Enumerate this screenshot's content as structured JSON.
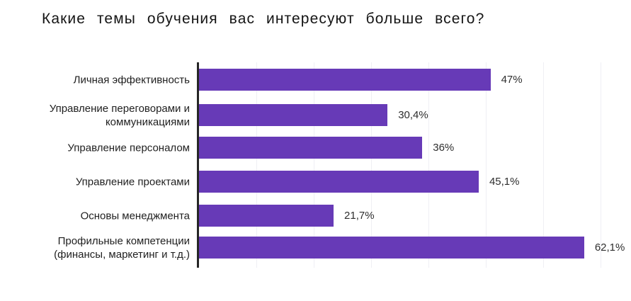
{
  "chart_data": {
    "type": "bar",
    "orientation": "horizontal",
    "title": "Какие темы обучения вас интересуют больше всего?",
    "categories": [
      "Личная эффективность",
      "Управление переговорами и коммуникациями",
      "Управление персоналом",
      "Управление проектами",
      "Основы менеджмента",
      "Профильные компетенции (финансы, маркетинг и т.д.)"
    ],
    "values": [
      47,
      30.4,
      36,
      45.1,
      21.7,
      62.1
    ],
    "value_labels": [
      "47%",
      "30,4%",
      "36%",
      "45,1%",
      "21,7%",
      "62,1%"
    ],
    "xlabel": "",
    "ylabel": "",
    "axis_range": [
      0,
      70
    ],
    "gridline_step_percent": 10,
    "grid": "vertical only, very light",
    "legend": "none",
    "colors": {
      "bar": "#673ab7",
      "axis_line": "#262626",
      "gridline": "#efeff4",
      "title_text": "#141414",
      "label_text": "#1f1f1f",
      "value_text": "#2e2e2e",
      "background": "#ffffff"
    }
  }
}
